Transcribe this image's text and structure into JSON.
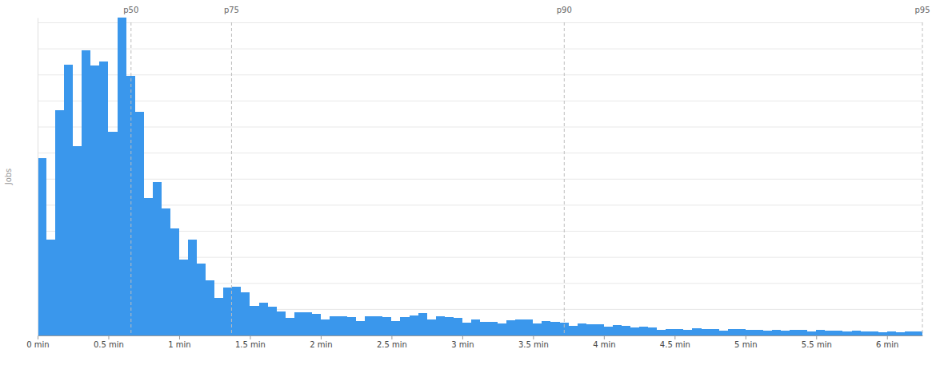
{
  "chart_data": {
    "type": "histogram",
    "y_label": "Jobs",
    "bins": [
      0,
      0.0625,
      0.125,
      0.1875,
      0.25,
      0.3125,
      0.375,
      0.4375,
      0.5,
      0.5625,
      0.625,
      0.6875,
      0.75,
      0.8125,
      0.875,
      0.9375,
      1,
      1.0625,
      1.125,
      1.1875,
      1.25,
      1.3125,
      1.375,
      1.4375,
      1.5,
      1.5625,
      1.625,
      1.6875,
      1.75,
      1.8125,
      1.875,
      1.9375,
      2,
      2.0625,
      2.125,
      2.1875,
      2.25,
      2.3125,
      2.375,
      2.4375,
      2.5,
      2.5625,
      2.625,
      2.6875,
      2.75,
      2.8125,
      2.875,
      2.9375,
      3,
      3.0625,
      3.125,
      3.1875,
      3.25,
      3.3125,
      3.375,
      3.4375,
      3.5,
      3.5625,
      3.625,
      3.6875,
      3.75,
      3.8125,
      3.875,
      3.9375,
      4,
      4.0625,
      4.125,
      4.1875,
      4.25,
      4.3125,
      4.375,
      4.4375,
      4.5,
      4.5625,
      4.625,
      4.6875,
      4.75,
      4.8125,
      4.875,
      4.9375,
      5,
      5.0625,
      5.125,
      5.1875,
      5.25,
      5.3125,
      5.375,
      5.4375,
      5.5,
      5.5625,
      5.625,
      5.6875,
      5.75,
      5.8125,
      5.875,
      5.9375,
      6,
      6.0625,
      6.125,
      6.1875,
      6.25
    ],
    "values": [
      68,
      36.8,
      86.5,
      104,
      72.7,
      109.5,
      103.7,
      105,
      78.2,
      122,
      99.7,
      85.9,
      52.8,
      58.9,
      48.8,
      41.1,
      29.1,
      36.8,
      27.6,
      21.2,
      14.4,
      18.4,
      18.7,
      16.6,
      11.3,
      12.6,
      11,
      9.2,
      6.7,
      8.9,
      8.9,
      8.3,
      6.1,
      7.4,
      7.4,
      7.1,
      5.5,
      7.4,
      7.4,
      7.1,
      5.5,
      7.1,
      7.7,
      8.6,
      6.1,
      7.4,
      7.1,
      6.7,
      4.9,
      6.1,
      5.2,
      5.2,
      4.6,
      5.8,
      6.1,
      6.1,
      4.6,
      5.5,
      5.2,
      4.9,
      3.7,
      4.6,
      4.3,
      4.3,
      3.4,
      4,
      3.7,
      3.1,
      3.4,
      3.1,
      2.1,
      2.5,
      2.5,
      2.1,
      2.8,
      2.5,
      2.5,
      1.8,
      2.5,
      2.5,
      2.1,
      2.1,
      1.8,
      2.1,
      1.8,
      2.1,
      2.1,
      1.5,
      2.1,
      1.8,
      1.8,
      1.5,
      1.8,
      1.5,
      1.5,
      1.2,
      1.5,
      1.2,
      1.5,
      1.5
    ],
    "color": "#3a97ec",
    "xlim": [
      0,
      6.25
    ],
    "ylim": [
      0,
      122
    ],
    "xticks": [
      {
        "value": 0,
        "label": "0 min"
      },
      {
        "value": 0.5,
        "label": "0.5 min"
      },
      {
        "value": 1,
        "label": "1 min"
      },
      {
        "value": 1.5,
        "label": "1.5 min"
      },
      {
        "value": 2,
        "label": "2 min"
      },
      {
        "value": 2.5,
        "label": "2.5 min"
      },
      {
        "value": 3,
        "label": "3 min"
      },
      {
        "value": 3.5,
        "label": "3.5 min"
      },
      {
        "value": 4,
        "label": "4 min"
      },
      {
        "value": 4.5,
        "label": "4.5 min"
      },
      {
        "value": 5,
        "label": "5 min"
      },
      {
        "value": 5.5,
        "label": "5.5 min"
      },
      {
        "value": 6,
        "label": "6 min"
      }
    ],
    "yticks": [
      0,
      10,
      20,
      30,
      40,
      50,
      60,
      70,
      80,
      90,
      100,
      110,
      120
    ],
    "grid": true,
    "tick_labels": "x",
    "annotations": [
      {
        "label": "p50",
        "x": 0.66
      },
      {
        "label": "p75",
        "x": 1.37
      },
      {
        "label": "p90",
        "x": 3.72
      },
      {
        "label": "p95",
        "x": 6.25
      }
    ]
  }
}
